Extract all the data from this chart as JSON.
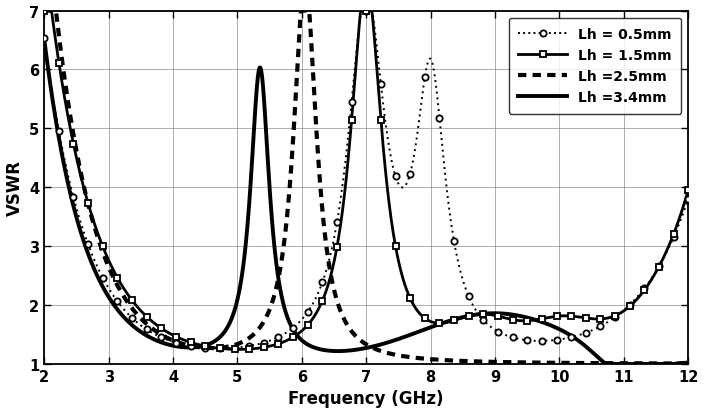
{
  "title": "",
  "xlabel": "Frequency (GHz)",
  "ylabel": "VSWR",
  "xlim": [
    2,
    12
  ],
  "ylim": [
    1,
    7
  ],
  "xticks": [
    2,
    3,
    4,
    5,
    6,
    7,
    8,
    9,
    10,
    11,
    12
  ],
  "yticks": [
    1,
    2,
    3,
    4,
    5,
    6,
    7
  ],
  "background_color": "#ffffff",
  "line_color": "#000000"
}
